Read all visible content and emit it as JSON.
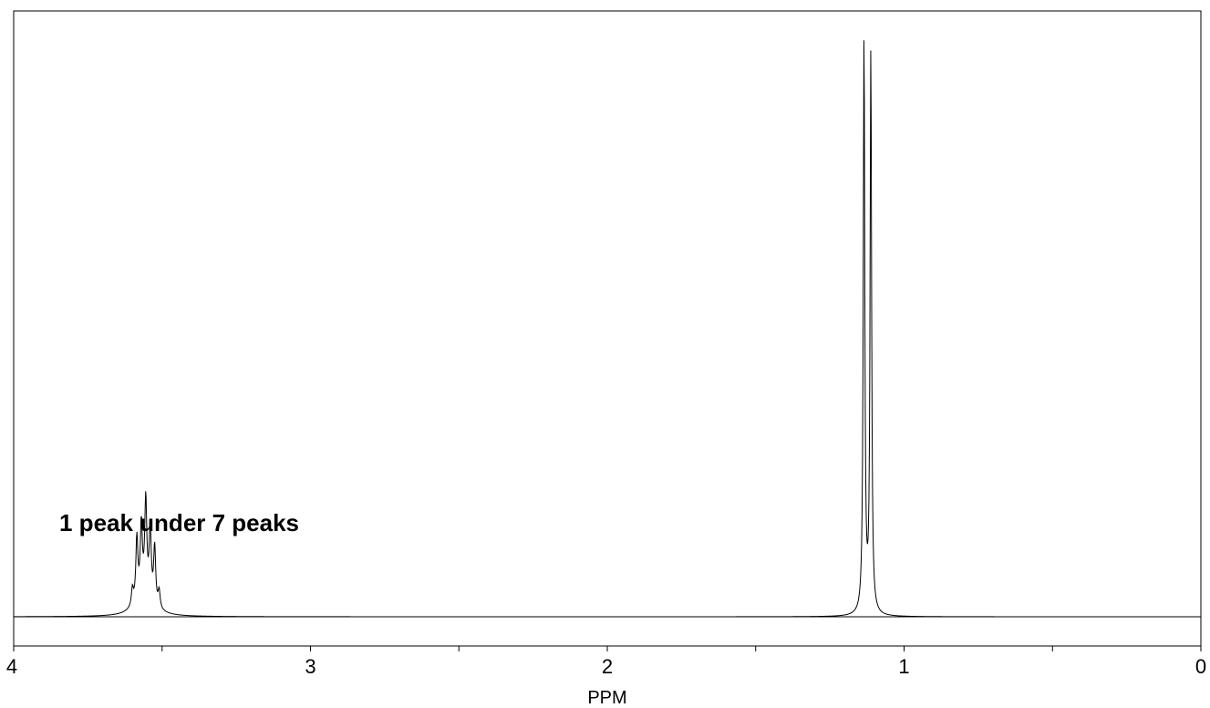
{
  "chart_data": {
    "type": "line",
    "title": "",
    "xlabel": "PPM",
    "ylabel": "",
    "xlim": [
      4,
      0
    ],
    "x_reversed": true,
    "grid": false,
    "legend": "none",
    "x_ticks": [
      {
        "value": 4,
        "label": "4"
      },
      {
        "value": 3.5,
        "label": ""
      },
      {
        "value": 3,
        "label": "3"
      },
      {
        "value": 2.5,
        "label": ""
      },
      {
        "value": 2,
        "label": "2"
      },
      {
        "value": 1.5,
        "label": ""
      },
      {
        "value": 1,
        "label": "1"
      },
      {
        "value": 0.5,
        "label": ""
      },
      {
        "value": 0,
        "label": "0"
      }
    ],
    "annotations": [
      {
        "text": "1 peak under 7 peaks",
        "x": 3.6
      }
    ],
    "series": [
      {
        "color": "#000000",
        "baseline": 0,
        "peaks": [
          {
            "ppm": 3.6,
            "height": 0.03,
            "width": 0.004
          },
          {
            "ppm": 3.585,
            "height": 0.11,
            "width": 0.004
          },
          {
            "ppm": 3.57,
            "height": 0.12,
            "width": 0.004
          },
          {
            "ppm": 3.555,
            "height": 0.16,
            "width": 0.004
          },
          {
            "ppm": 3.54,
            "height": 0.12,
            "width": 0.004
          },
          {
            "ppm": 3.525,
            "height": 0.1,
            "width": 0.004
          },
          {
            "ppm": 3.51,
            "height": 0.03,
            "width": 0.004
          },
          {
            "ppm": 3.56,
            "height": 0.04,
            "width": 0.03
          },
          {
            "ppm": 1.135,
            "height": 1.0,
            "width": 0.003
          },
          {
            "ppm": 1.112,
            "height": 0.975,
            "width": 0.003
          }
        ]
      }
    ],
    "colors": {
      "line": "#000000",
      "axis": "#000000",
      "background": "#ffffff"
    }
  }
}
